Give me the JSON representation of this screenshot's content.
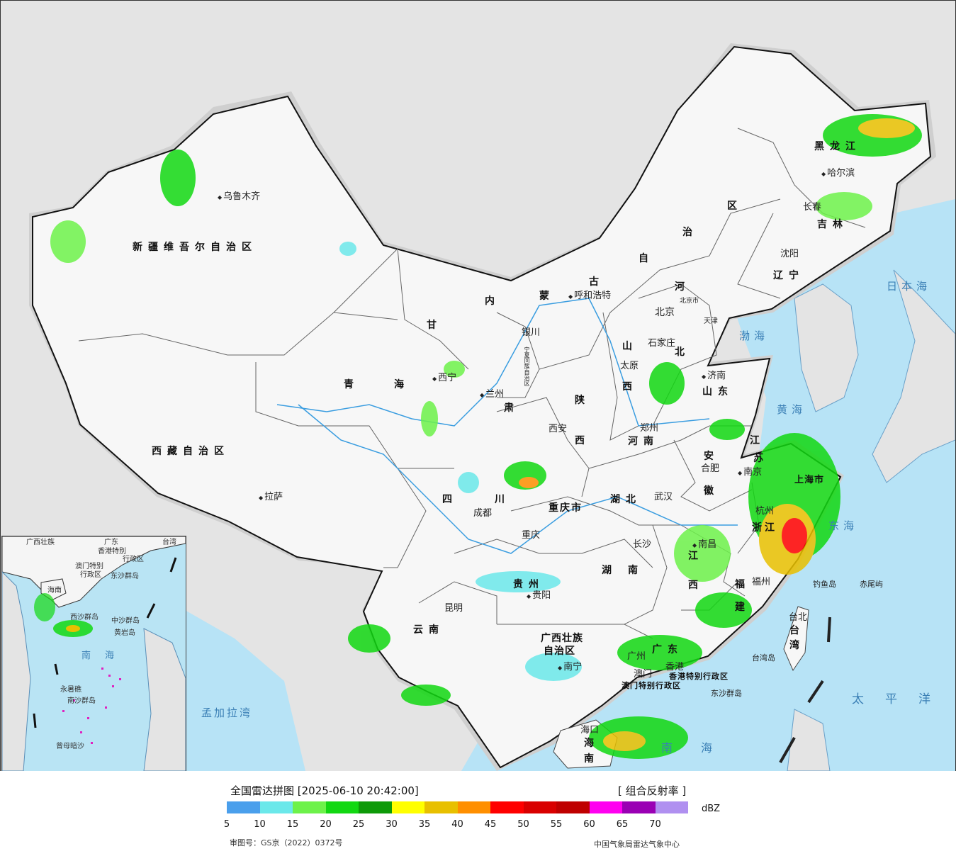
{
  "map": {
    "provinces": [
      {
        "id": "xinjiang",
        "label": "新疆维吾尔自治区"
      },
      {
        "id": "xizang",
        "label": "西藏自治区"
      },
      {
        "id": "qinghai-q",
        "label": "青"
      },
      {
        "id": "qinghai-h",
        "label": "海"
      },
      {
        "id": "gansu-g",
        "label": "甘"
      },
      {
        "id": "gansu-s",
        "label": "肃"
      },
      {
        "id": "neimenggu-n",
        "label": "内"
      },
      {
        "id": "neimenggu-m",
        "label": "蒙"
      },
      {
        "id": "neimenggu-g",
        "label": "古"
      },
      {
        "id": "neimenggu-z",
        "label": "自"
      },
      {
        "id": "neimenggu-zh",
        "label": "治"
      },
      {
        "id": "neimenggu-q",
        "label": "区"
      },
      {
        "id": "heilongjiang",
        "label": "黑龙江"
      },
      {
        "id": "jilin",
        "label": "吉林"
      },
      {
        "id": "liaoning",
        "label": "辽宁"
      },
      {
        "id": "hebei-h",
        "label": "河"
      },
      {
        "id": "hebei-b",
        "label": "北"
      },
      {
        "id": "shanxi-s",
        "label": "山"
      },
      {
        "id": "shanxi-x",
        "label": "西"
      },
      {
        "id": "shandong",
        "label": "山东"
      },
      {
        "id": "henan",
        "label": "河南"
      },
      {
        "id": "shaanxi-s",
        "label": "陕"
      },
      {
        "id": "shaanxi-x",
        "label": "西"
      },
      {
        "id": "sichuan-s",
        "label": "四"
      },
      {
        "id": "sichuan-c",
        "label": "川"
      },
      {
        "id": "chongqing",
        "label": "重庆市"
      },
      {
        "id": "hubei",
        "label": "湖北"
      },
      {
        "id": "hunan-h",
        "label": "湖"
      },
      {
        "id": "hunan-n",
        "label": "南"
      },
      {
        "id": "guizhou",
        "label": "贵州"
      },
      {
        "id": "yunnan",
        "label": "云南"
      },
      {
        "id": "guangxi",
        "label": "广西壮族"
      },
      {
        "id": "guangxi2",
        "label": "自治区"
      },
      {
        "id": "guangdong",
        "label": "广东"
      },
      {
        "id": "jiangxi-j",
        "label": "江"
      },
      {
        "id": "jiangxi-x",
        "label": "西"
      },
      {
        "id": "fujian-f",
        "label": "福"
      },
      {
        "id": "fujian-j",
        "label": "建"
      },
      {
        "id": "zhejiang",
        "label": "浙江"
      },
      {
        "id": "jiangsu-j",
        "label": "江"
      },
      {
        "id": "jiangsu-s",
        "label": "苏"
      },
      {
        "id": "anhui-a",
        "label": "安"
      },
      {
        "id": "anhui-h",
        "label": "徽"
      },
      {
        "id": "hainan-h",
        "label": "海"
      },
      {
        "id": "hainan-n",
        "label": "南"
      },
      {
        "id": "taiwan-t",
        "label": "台"
      },
      {
        "id": "taiwan-w",
        "label": "湾"
      },
      {
        "id": "ningxia",
        "label": "宁夏回族自治区"
      },
      {
        "id": "hongkong",
        "label": "香港特别行政区"
      },
      {
        "id": "macao",
        "label": "澳门特别行政区"
      },
      {
        "id": "shanghai",
        "label": "上海市"
      },
      {
        "id": "tianjin",
        "label": "天津"
      },
      {
        "id": "beijing-city",
        "label": "北京市"
      }
    ],
    "cities": [
      {
        "id": "urumqi",
        "label": "乌鲁木齐"
      },
      {
        "id": "lhasa",
        "label": "拉萨"
      },
      {
        "id": "xining",
        "label": "西宁"
      },
      {
        "id": "lanzhou",
        "label": "兰州"
      },
      {
        "id": "yinchuan",
        "label": "银川"
      },
      {
        "id": "hohhot",
        "label": "呼和浩特"
      },
      {
        "id": "harbin",
        "label": "哈尔滨"
      },
      {
        "id": "changchun",
        "label": "长春"
      },
      {
        "id": "shenyang",
        "label": "沈阳"
      },
      {
        "id": "beijing",
        "label": "北京"
      },
      {
        "id": "shijiazhuang",
        "label": "石家庄"
      },
      {
        "id": "taiyuan",
        "label": "太原"
      },
      {
        "id": "jinan",
        "label": "济南"
      },
      {
        "id": "zhengzhou",
        "label": "郑州"
      },
      {
        "id": "xian",
        "label": "西安"
      },
      {
        "id": "chengdu",
        "label": "成都"
      },
      {
        "id": "chongqing-city",
        "label": "重庆"
      },
      {
        "id": "wuhan",
        "label": "武汉"
      },
      {
        "id": "hefei",
        "label": "合肥"
      },
      {
        "id": "nanjing",
        "label": "南京"
      },
      {
        "id": "hangzhou",
        "label": "杭州"
      },
      {
        "id": "changsha",
        "label": "长沙"
      },
      {
        "id": "nanchang",
        "label": "南昌"
      },
      {
        "id": "fuzhou",
        "label": "福州"
      },
      {
        "id": "guiyang",
        "label": "贵阳"
      },
      {
        "id": "kunming",
        "label": "昆明"
      },
      {
        "id": "nanning",
        "label": "南宁"
      },
      {
        "id": "guangzhou",
        "label": "广州"
      },
      {
        "id": "macau-city",
        "label": "澳门"
      },
      {
        "id": "hongkong-city",
        "label": "香港"
      },
      {
        "id": "haikou",
        "label": "海口"
      },
      {
        "id": "taibei",
        "label": "台北"
      }
    ],
    "seas": [
      {
        "id": "bohai",
        "label": "渤海"
      },
      {
        "id": "huanghai",
        "label": "黄海"
      },
      {
        "id": "donghai",
        "label": "东海"
      },
      {
        "id": "nanhai",
        "label": "南海"
      },
      {
        "id": "taipingyang",
        "label": "太平洋"
      },
      {
        "id": "ribenhai",
        "label": "日本海"
      },
      {
        "id": "mengjiala",
        "label": "孟加拉湾"
      }
    ],
    "islands": [
      {
        "id": "diaoyu",
        "label": "钓鱼岛"
      },
      {
        "id": "chiwei",
        "label": "赤尾屿"
      },
      {
        "id": "taiwandao",
        "label": "台湾岛"
      },
      {
        "id": "dongsha",
        "label": "东沙群岛"
      }
    ],
    "inset_labels": [
      {
        "id": "i-guangxi",
        "label": "广西壮族"
      },
      {
        "id": "i-guangdong",
        "label": "广东"
      },
      {
        "id": "i-hk",
        "label": "香港特别"
      },
      {
        "id": "i-hk2",
        "label": "行政区"
      },
      {
        "id": "i-taiwan",
        "label": "台湾"
      },
      {
        "id": "i-macao",
        "label": "澳门特别"
      },
      {
        "id": "i-macao2",
        "label": "行政区"
      },
      {
        "id": "i-dongsha",
        "label": "东沙群岛"
      },
      {
        "id": "i-hainan",
        "label": "海南"
      },
      {
        "id": "i-xisha",
        "label": "西沙群岛"
      },
      {
        "id": "i-zhongsha",
        "label": "中沙群岛"
      },
      {
        "id": "i-huangyan",
        "label": "黄岩岛"
      },
      {
        "id": "i-nanhai",
        "label": "南海"
      },
      {
        "id": "i-yongshu",
        "label": "永暑礁"
      },
      {
        "id": "i-nansha",
        "label": "南沙群岛"
      },
      {
        "id": "i-zengmu",
        "label": "曾母暗沙"
      }
    ]
  },
  "legend": {
    "title": "全国雷达拼图 [2025-06-10 20:42:00]",
    "product": "[ 组合反射率 ]",
    "unit": "dBZ",
    "colors": [
      "#4a9fec",
      "#6be8ea",
      "#6df24a",
      "#12d812",
      "#0d9a08",
      "#ffff00",
      "#e8c000",
      "#ff8f00",
      "#ff0000",
      "#d90000",
      "#bf0000",
      "#ff00f0",
      "#9a00b4",
      "#b090f0"
    ],
    "ticks": [
      "5",
      "10",
      "15",
      "20",
      "25",
      "30",
      "35",
      "40",
      "45",
      "50",
      "55",
      "60",
      "65",
      "70"
    ]
  },
  "footer": {
    "approval": "审图号：GS京（2022）0372号",
    "source": "中国气象局雷达气象中心"
  }
}
